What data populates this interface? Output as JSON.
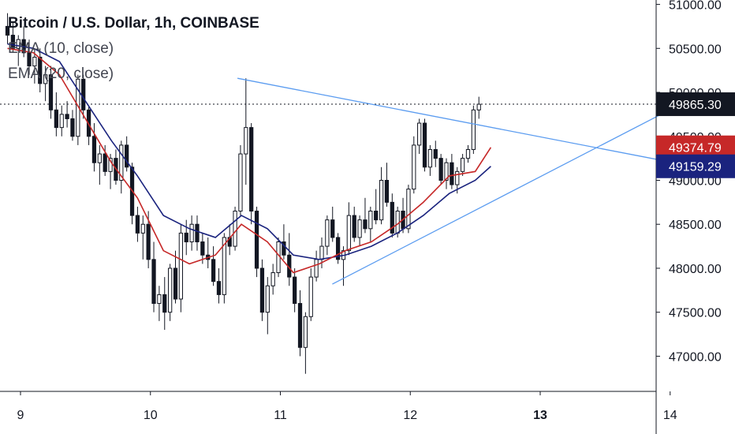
{
  "header": {
    "title": "Bitcoin / U.S. Dollar, 1h, COINBASE",
    "ema10": "EMA (10, close)",
    "ema20": "EMA (20, close)"
  },
  "colors": {
    "up": "#ffffff",
    "down": "#131722",
    "ema10": "#c62828",
    "ema20": "#1a237e",
    "trendline": "#5b9cf0",
    "grid": "#e0e3eb",
    "text": "#131722"
  },
  "chart_data": {
    "type": "candlestick",
    "ylim": [
      46600,
      51050
    ],
    "xlim": [
      9,
      14.05
    ],
    "x_ticks": [
      "9",
      "10",
      "11",
      "12",
      "13",
      "14"
    ],
    "y_ticks": [
      "47000.00",
      "47500.00",
      "48000.00",
      "48500.00",
      "49000.00",
      "49500.00",
      "50000.00",
      "50500.00",
      "51000.00"
    ],
    "price_labels": [
      {
        "name": "last",
        "text": "49865.30",
        "value": 49865.3,
        "bg": "#131722",
        "fg": "#ffffff"
      },
      {
        "name": "ema10",
        "text": "49374.79",
        "value": 49374.79,
        "bg": "#c62828",
        "fg": "#ffffff"
      },
      {
        "name": "ema20",
        "text": "49159.29",
        "value": 49159.29,
        "bg": "#1a237e",
        "fg": "#ffffff"
      }
    ],
    "last_price_line": 49865.3,
    "trendlines": [
      {
        "x": [
          10.67,
          14.1
        ],
        "y": [
          50160,
          49180
        ]
      },
      {
        "x": [
          11.4,
          14.1
        ],
        "y": [
          47820,
          49880
        ]
      }
    ],
    "candles": {
      "x0": 8.9,
      "dx": 0.0417,
      "ohlc": [
        [
          50750,
          50900,
          50550,
          50650
        ],
        [
          50650,
          50800,
          50450,
          50500
        ],
        [
          50500,
          50650,
          50300,
          50600
        ],
        [
          50600,
          50750,
          50400,
          50450
        ],
        [
          50450,
          50600,
          50200,
          50300
        ],
        [
          50300,
          50500,
          50100,
          50400
        ],
        [
          50400,
          50500,
          50000,
          50100
        ],
        [
          50100,
          50300,
          49900,
          50200
        ],
        [
          50200,
          50300,
          49700,
          49800
        ],
        [
          49800,
          50000,
          49500,
          49600
        ],
        [
          49600,
          49850,
          49500,
          49750
        ],
        [
          49750,
          49900,
          49600,
          49700
        ],
        [
          49700,
          49800,
          49450,
          49500
        ],
        [
          49500,
          50200,
          49400,
          50150
        ],
        [
          50150,
          50200,
          49700,
          49800
        ],
        [
          49800,
          49850,
          49400,
          49500
        ],
        [
          49500,
          49650,
          49100,
          49200
        ],
        [
          49200,
          49400,
          48950,
          49300
        ],
        [
          49300,
          49400,
          49050,
          49100
        ],
        [
          49100,
          49300,
          48900,
          49250
        ],
        [
          49250,
          49350,
          48950,
          49000
        ],
        [
          49000,
          49450,
          48850,
          49400
        ],
        [
          49400,
          49500,
          49100,
          49150
        ],
        [
          49150,
          49200,
          48500,
          48600
        ],
        [
          48600,
          48700,
          48300,
          48400
        ],
        [
          48400,
          48600,
          48100,
          48500
        ],
        [
          48500,
          48650,
          48000,
          48100
        ],
        [
          48100,
          48300,
          47500,
          47600
        ],
        [
          47600,
          47800,
          47400,
          47700
        ],
        [
          47700,
          47900,
          47300,
          47500
        ],
        [
          47500,
          48050,
          47400,
          48000
        ],
        [
          48000,
          48200,
          47600,
          47650
        ],
        [
          47650,
          48500,
          47500,
          48400
        ],
        [
          48400,
          48550,
          48150,
          48300
        ],
        [
          48300,
          48600,
          48200,
          48500
        ],
        [
          48500,
          48600,
          48200,
          48300
        ],
        [
          48300,
          48400,
          48050,
          48150
        ],
        [
          48150,
          48350,
          48000,
          48100
        ],
        [
          48100,
          48250,
          47800,
          47850
        ],
        [
          47850,
          48000,
          47600,
          47700
        ],
        [
          47700,
          48400,
          47600,
          48350
        ],
        [
          48350,
          48500,
          48150,
          48250
        ],
        [
          48250,
          48700,
          48200,
          48650
        ],
        [
          48650,
          49400,
          48600,
          49300
        ],
        [
          49300,
          50160,
          48950,
          49600
        ],
        [
          49600,
          49650,
          48500,
          48650
        ],
        [
          48650,
          48700,
          47900,
          48000
        ],
        [
          48000,
          48100,
          47400,
          47500
        ],
        [
          47500,
          47900,
          47250,
          47800
        ],
        [
          47800,
          48050,
          47700,
          47950
        ],
        [
          47950,
          48350,
          47900,
          48300
        ],
        [
          48300,
          48500,
          48100,
          48150
        ],
        [
          48150,
          48400,
          47800,
          47900
        ],
        [
          47900,
          48000,
          47500,
          47600
        ],
        [
          47600,
          47750,
          47000,
          47100
        ],
        [
          47100,
          47500,
          46800,
          47450
        ],
        [
          47450,
          48000,
          47400,
          47900
        ],
        [
          47900,
          48200,
          47850,
          48100
        ],
        [
          48100,
          48350,
          48000,
          48250
        ],
        [
          48250,
          48600,
          48150,
          48550
        ],
        [
          48550,
          48700,
          48300,
          48350
        ],
        [
          48350,
          48400,
          48050,
          48100
        ],
        [
          48100,
          48250,
          47800,
          48200
        ],
        [
          48200,
          48750,
          48150,
          48600
        ],
        [
          48600,
          48700,
          48300,
          48350
        ],
        [
          48350,
          48600,
          48250,
          48550
        ],
        [
          48550,
          48800,
          48400,
          48450
        ],
        [
          48450,
          48700,
          48300,
          48650
        ],
        [
          48650,
          48900,
          48500,
          48550
        ],
        [
          48550,
          49150,
          48500,
          49000
        ],
        [
          49000,
          49200,
          48700,
          48750
        ],
        [
          48750,
          48850,
          48350,
          48400
        ],
        [
          48400,
          48700,
          48350,
          48650
        ],
        [
          48650,
          48800,
          48400,
          48450
        ],
        [
          48450,
          48950,
          48400,
          48900
        ],
        [
          48900,
          49500,
          48850,
          49400
        ],
        [
          49400,
          49700,
          49300,
          49650
        ],
        [
          49650,
          49700,
          49100,
          49150
        ],
        [
          49150,
          49400,
          49050,
          49350
        ],
        [
          49350,
          49450,
          49150,
          49250
        ],
        [
          49250,
          49300,
          48950,
          49000
        ],
        [
          49000,
          49250,
          48900,
          49200
        ],
        [
          49200,
          49300,
          48900,
          48950
        ],
        [
          48950,
          49150,
          48850,
          49100
        ],
        [
          49100,
          49300,
          49050,
          49250
        ],
        [
          49250,
          49400,
          49200,
          49350
        ],
        [
          49350,
          49850,
          49300,
          49800
        ],
        [
          49800,
          49950,
          49700,
          49865
        ]
      ]
    },
    "ema10": {
      "x": [
        8.9,
        9.1,
        9.3,
        9.5,
        9.7,
        9.9,
        10.1,
        10.3,
        10.5,
        10.7,
        10.9,
        11.1,
        11.3,
        11.5,
        11.7,
        11.9,
        12.1,
        12.3,
        12.5,
        12.62
      ],
      "y": [
        50500,
        50450,
        50200,
        49700,
        49200,
        48800,
        48200,
        48050,
        48150,
        48500,
        48300,
        47950,
        48050,
        48200,
        48300,
        48500,
        48750,
        49050,
        49100,
        49374
      ]
    },
    "ema20": {
      "x": [
        8.9,
        9.1,
        9.3,
        9.5,
        9.7,
        9.9,
        10.1,
        10.3,
        10.5,
        10.7,
        10.9,
        11.1,
        11.3,
        11.5,
        11.7,
        11.9,
        12.1,
        12.3,
        12.5,
        12.62
      ],
      "y": [
        50550,
        50500,
        50350,
        49900,
        49450,
        49050,
        48600,
        48450,
        48350,
        48600,
        48450,
        48150,
        48100,
        48150,
        48250,
        48400,
        48600,
        48850,
        49000,
        49159
      ]
    }
  }
}
